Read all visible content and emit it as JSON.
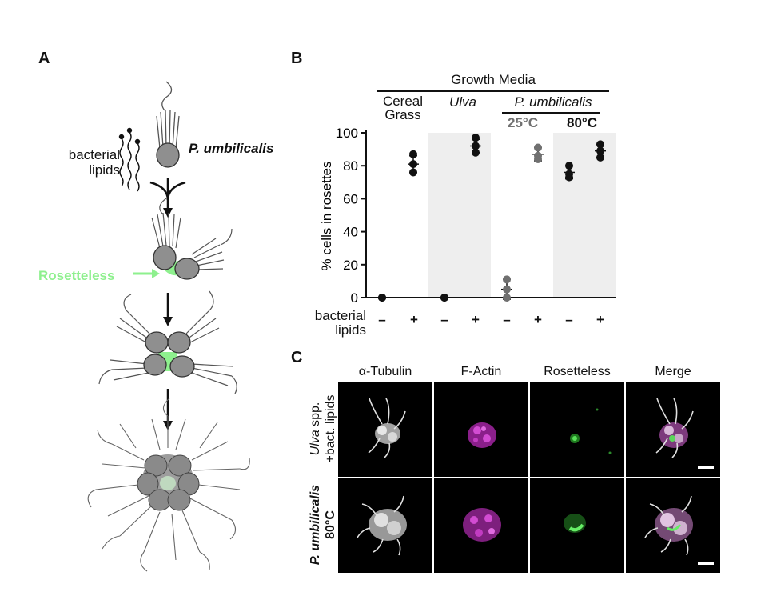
{
  "panelA": {
    "letter": "A",
    "bacterial_lipids": [
      "bacterial",
      "lipids"
    ],
    "species": "P. umbilicalis",
    "rosetteless": "Rosetteless"
  },
  "panelB": {
    "letter": "B",
    "growth_media": "Growth Media",
    "media_labels": {
      "cereal_grass": [
        "Cereal",
        "Grass"
      ],
      "ulva": "Ulva",
      "pumbilicalis": "P. umbilicalis",
      "temp_25": "25°C",
      "temp_80": "80°C"
    },
    "row_label": [
      "bacterial",
      "lipids"
    ],
    "signs": [
      "–",
      "+",
      "–",
      "+",
      "–",
      "+",
      "–",
      "+"
    ],
    "colors": {
      "black": "#111111",
      "grey25": "#707070",
      "shade": "#eeeeee"
    }
  },
  "chart_data": {
    "type": "scatter",
    "ylabel": "% cells in rosettes",
    "ylim": [
      0,
      100
    ],
    "yticks": [
      0,
      20,
      40,
      60,
      80,
      100
    ],
    "categories": [
      "Cereal Grass –",
      "Cereal Grass +",
      "Ulva –",
      "Ulva +",
      "P. umbilicalis 25°C –",
      "P. umbilicalis 25°C +",
      "P. umbilicalis 80°C –",
      "P. umbilicalis 80°C +"
    ],
    "groups": [
      {
        "points": [
          0,
          0,
          0
        ],
        "mean": 0,
        "err": 0,
        "color": "#111111"
      },
      {
        "points": [
          76,
          81,
          87
        ],
        "mean": 81,
        "err": 5,
        "color": "#111111"
      },
      {
        "points": [
          0,
          0,
          0
        ],
        "mean": 0,
        "err": 0,
        "color": "#111111"
      },
      {
        "points": [
          88,
          92,
          97
        ],
        "mean": 92,
        "err": 4,
        "color": "#111111"
      },
      {
        "points": [
          0,
          5,
          11
        ],
        "mean": 5,
        "err": 6,
        "color": "#707070"
      },
      {
        "points": [
          84,
          86,
          91
        ],
        "mean": 87,
        "err": 4,
        "color": "#707070"
      },
      {
        "points": [
          73,
          75,
          80
        ],
        "mean": 76,
        "err": 4,
        "color": "#111111"
      },
      {
        "points": [
          85,
          89,
          93
        ],
        "mean": 89,
        "err": 4,
        "color": "#111111"
      }
    ]
  },
  "panelC": {
    "letter": "C",
    "channels": [
      {
        "name": "α-Tubulin",
        "color": "#8a8a8a"
      },
      {
        "name": "F-Actin",
        "color": "#e83ee8"
      },
      {
        "name": "Rosetteless",
        "color": "#4ddf4d"
      },
      {
        "name": "Merge",
        "color": "#111111"
      }
    ],
    "row1": {
      "italic": "Ulva",
      "rest": " spp.",
      "line2": "+bact. lipids"
    },
    "row2": {
      "line1": "P. umbilicalis",
      "line2": "80°C"
    }
  }
}
